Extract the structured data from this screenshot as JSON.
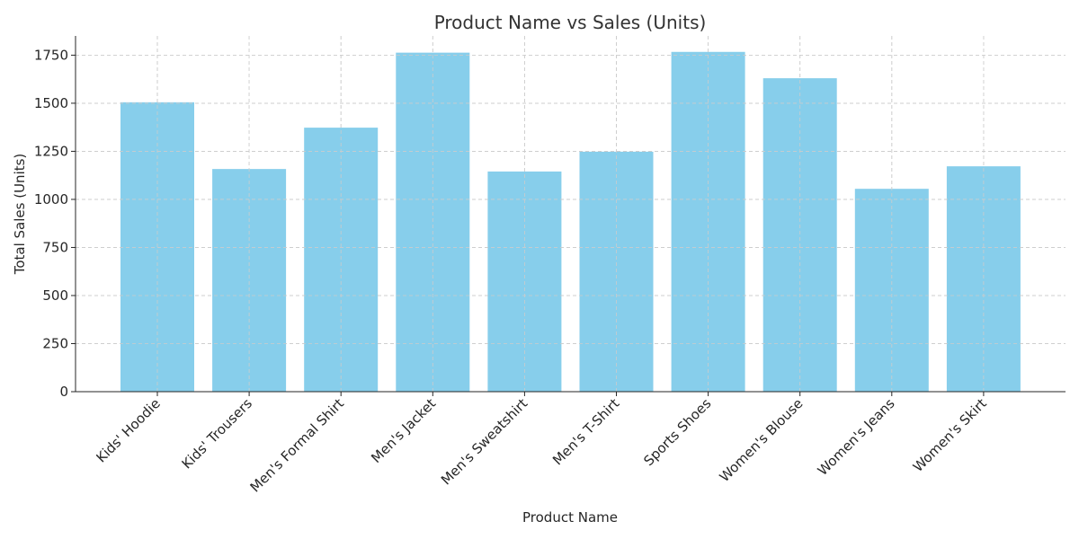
{
  "chart_data": {
    "type": "bar",
    "title": "Product Name vs Sales (Units)",
    "xlabel": "Product Name",
    "ylabel": "Total Sales (Units)",
    "categories": [
      "Kids' Hoodie",
      "Kids' Trousers",
      "Men's Formal Shirt",
      "Men's Jacket",
      "Men's Sweatshirt",
      "Men's T-Shirt",
      "Sports Shoes",
      "Women's Blouse",
      "Women's Jeans",
      "Women's Skirt"
    ],
    "values": [
      1505,
      1158,
      1373,
      1763,
      1145,
      1248,
      1767,
      1630,
      1055,
      1172
    ],
    "ylim": [
      0,
      1850
    ],
    "yticks": [
      0,
      250,
      500,
      750,
      1000,
      1250,
      1500,
      1750
    ],
    "ytick_labels": [
      "0",
      "250",
      "500",
      "750",
      "1000",
      "1250",
      "1500",
      "1750"
    ],
    "grid": true,
    "bar_color": "#87CEEB"
  }
}
